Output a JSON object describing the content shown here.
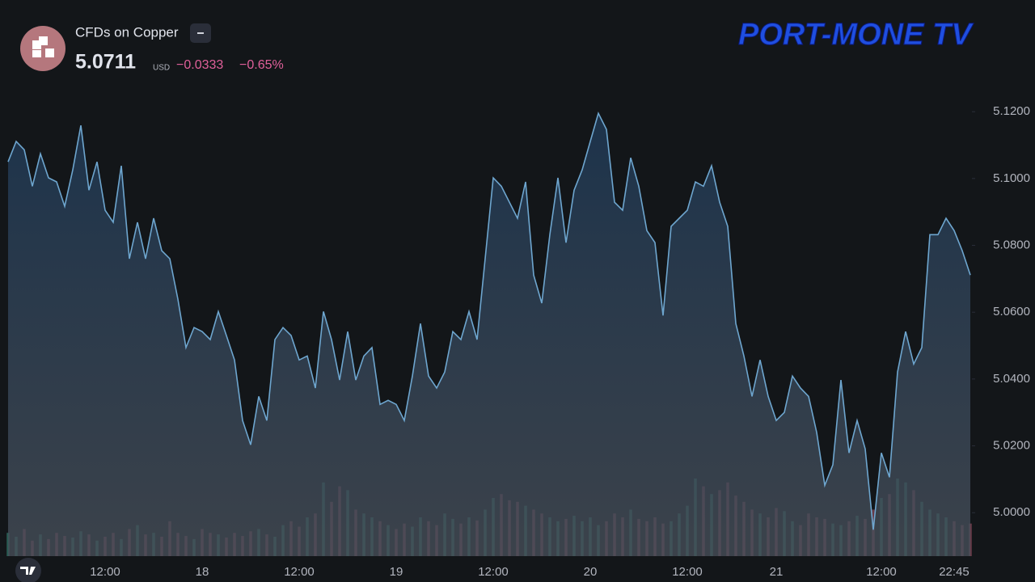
{
  "chart_data": {
    "type": "area",
    "title": "CFDs on Copper",
    "price": "5.0711",
    "currency": "USD",
    "change": "−0.0333",
    "change_percent": "−0.65%",
    "brand": "PORT-MONE TV",
    "color": "#6ea6cf",
    "volume_up_color": "#2f6e62",
    "volume_down_color": "#7d4452",
    "categories": [
      null,
      null,
      null,
      null,
      null,
      null,
      null,
      null,
      null,
      null,
      null,
      null,
      "12:00",
      null,
      null,
      null,
      null,
      null,
      null,
      null,
      null,
      null,
      null,
      null,
      "18",
      null,
      null,
      null,
      null,
      null,
      null,
      null,
      null,
      null,
      null,
      null,
      "12:00",
      null,
      null,
      null,
      null,
      null,
      null,
      null,
      null,
      null,
      null,
      null,
      "19",
      null,
      null,
      null,
      null,
      null,
      null,
      null,
      null,
      null,
      null,
      null,
      "12:00",
      null,
      null,
      null,
      null,
      null,
      null,
      null,
      null,
      null,
      null,
      null,
      "20",
      null,
      null,
      null,
      null,
      null,
      null,
      null,
      null,
      null,
      null,
      null,
      "12:00",
      null,
      null,
      null,
      null,
      null,
      null,
      null,
      null,
      null,
      null,
      "21",
      null,
      null,
      null,
      null,
      null,
      null,
      null,
      null,
      null,
      null,
      null,
      null,
      "12:00",
      null,
      null,
      null,
      null,
      null,
      null,
      null,
      null,
      "22:45",
      null,
      null
    ],
    "values": [
      5.105,
      5.1111,
      5.1086,
      5.0977,
      5.1074,
      5.1002,
      5.099,
      5.0917,
      5.1026,
      5.1159,
      5.0965,
      5.105,
      5.0905,
      5.0869,
      5.1038,
      5.076,
      5.0869,
      5.076,
      5.0881,
      5.0784,
      5.076,
      5.0639,
      5.0494,
      5.0554,
      5.0542,
      5.0518,
      5.0602,
      5.053,
      5.0457,
      5.0276,
      5.0203,
      5.0348,
      5.0276,
      5.0518,
      5.0554,
      5.053,
      5.0457,
      5.0469,
      5.0373,
      5.0602,
      5.0518,
      5.0397,
      5.0542,
      5.0397,
      5.0469,
      5.0494,
      5.0324,
      5.0336,
      5.0324,
      5.0276,
      5.0409,
      5.0566,
      5.0409,
      5.0373,
      5.0421,
      5.0542,
      5.0518,
      5.0602,
      5.0518,
      5.076,
      5.1002,
      5.0977,
      5.0929,
      5.0881,
      5.099,
      5.0711,
      5.0627,
      5.0832,
      5.1002,
      5.0808,
      5.0965,
      5.1026,
      5.1111,
      5.1195,
      5.1147,
      5.0929,
      5.0905,
      5.1062,
      5.0977,
      5.0844,
      5.0808,
      5.059,
      5.0857,
      5.0881,
      5.0905,
      5.099,
      5.0977,
      5.1038,
      5.0929,
      5.0857,
      5.0566,
      5.0469,
      5.0348,
      5.0457,
      5.0348,
      5.0276,
      5.03,
      5.0409,
      5.0373,
      5.0348,
      5.024,
      5.0082,
      5.0143,
      5.0397,
      5.0179,
      5.0276,
      5.0191,
      4.9949,
      5.0179,
      5.0106,
      5.0421,
      5.0542,
      5.0445,
      5.0494,
      5.0832,
      5.0832,
      5.0881,
      5.0844,
      5.0784,
      5.0711
    ],
    "volume": [
      30,
      25,
      35,
      20,
      28,
      22,
      30,
      26,
      24,
      32,
      28,
      20,
      25,
      30,
      22,
      35,
      40,
      28,
      30,
      25,
      45,
      30,
      26,
      22,
      35,
      30,
      28,
      24,
      30,
      26,
      32,
      35,
      28,
      25,
      40,
      45,
      38,
      50,
      55,
      95,
      70,
      90,
      85,
      60,
      55,
      50,
      45,
      40,
      35,
      42,
      38,
      50,
      45,
      40,
      55,
      48,
      42,
      50,
      46,
      60,
      75,
      80,
      72,
      70,
      65,
      60,
      55,
      50,
      45,
      48,
      52,
      45,
      50,
      40,
      45,
      55,
      50,
      60,
      48,
      45,
      50,
      42,
      45,
      55,
      65,
      100,
      90,
      80,
      85,
      95,
      78,
      70,
      60,
      55,
      50,
      62,
      58,
      45,
      40,
      55,
      50,
      48,
      42,
      40,
      45,
      52,
      48,
      60,
      75,
      80,
      100,
      95,
      85,
      70,
      60,
      55,
      50,
      45,
      40,
      42
    ],
    "ylim": [
      4.987,
      5.151
    ],
    "yticks": [
      {
        "value": 5.0,
        "label": "5.0000"
      },
      {
        "value": 5.02,
        "label": "5.0200"
      },
      {
        "value": 5.04,
        "label": "5.0400"
      },
      {
        "value": 5.06,
        "label": "5.0600"
      },
      {
        "value": 5.08,
        "label": "5.0800"
      },
      {
        "value": 5.1,
        "label": "5.1000"
      },
      {
        "value": 5.12,
        "label": "5.1200"
      }
    ]
  }
}
